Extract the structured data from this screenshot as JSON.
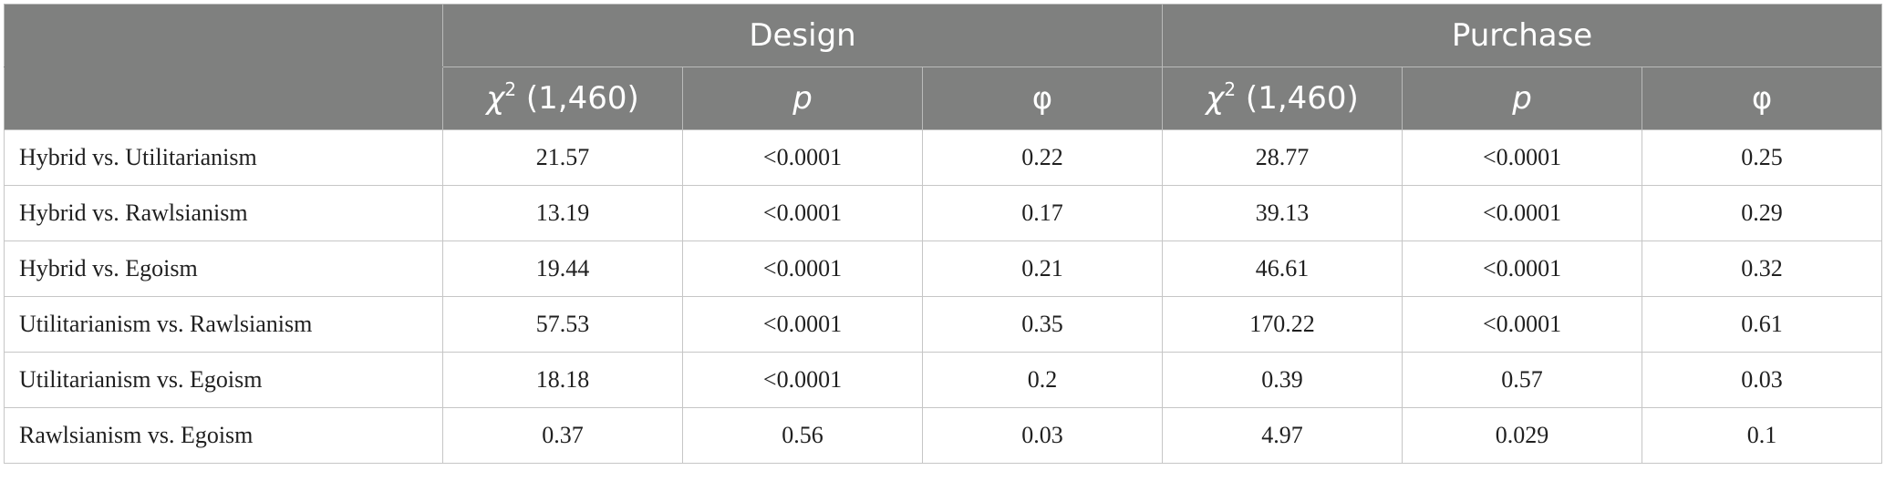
{
  "table": {
    "group_headers": [
      "Design",
      "Purchase"
    ],
    "sub_headers": [
      {
        "symbol": "χ",
        "sup": "2",
        "rest": " (1,460)"
      },
      {
        "symbol": "p",
        "sup": "",
        "rest": ""
      },
      {
        "symbol": "φ",
        "sup": "",
        "rest": ""
      },
      {
        "symbol": "χ",
        "sup": "2",
        "rest": " (1,460)"
      },
      {
        "symbol": "p",
        "sup": "",
        "rest": ""
      },
      {
        "symbol": "φ",
        "sup": "",
        "rest": ""
      }
    ],
    "rows": [
      {
        "label": "Hybrid vs. Utilitarianism",
        "cells": [
          "21.57",
          "<0.0001",
          "0.22",
          "28.77",
          "<0.0001",
          "0.25"
        ]
      },
      {
        "label": "Hybrid vs. Rawlsianism",
        "cells": [
          "13.19",
          "<0.0001",
          "0.17",
          "39.13",
          "<0.0001",
          "0.29"
        ]
      },
      {
        "label": "Hybrid vs. Egoism",
        "cells": [
          "19.44",
          "<0.0001",
          "0.21",
          "46.61",
          "<0.0001",
          "0.32"
        ]
      },
      {
        "label": "Utilitarianism vs. Rawlsianism",
        "cells": [
          "57.53",
          "<0.0001",
          "0.35",
          "170.22",
          "<0.0001",
          "0.61"
        ]
      },
      {
        "label": "Utilitarianism vs. Egoism",
        "cells": [
          "18.18",
          "<0.0001",
          "0.2",
          "0.39",
          "0.57",
          "0.03"
        ]
      },
      {
        "label": "Rawlsianism vs. Egoism",
        "cells": [
          "0.37",
          "0.56",
          "0.03",
          "4.97",
          "0.029",
          "0.1"
        ]
      }
    ]
  },
  "colors": {
    "header_bg": "#7f807f",
    "header_text": "#ffffff",
    "grid": "#c6c6c6",
    "body_text": "#1f1f1f"
  }
}
